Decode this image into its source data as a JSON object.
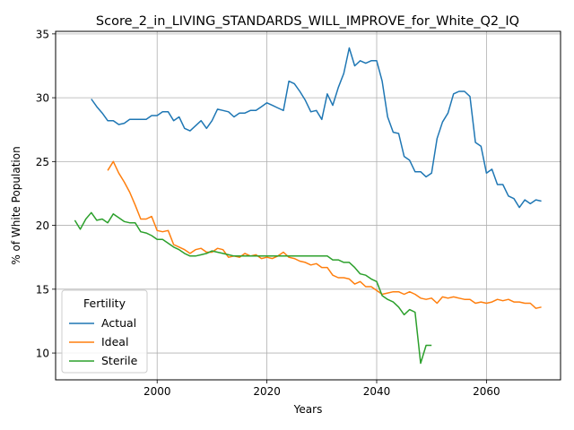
{
  "chart_data": {
    "type": "line",
    "title": "Score_2_in_LIVING_STANDARDS_WILL_IMPROVE_for_White_Q2_IQ",
    "xlabel": "Years",
    "ylabel": "% of White Population",
    "xlim": [
      1981.5,
      2073.5
    ],
    "ylim": [
      7.9,
      35.2
    ],
    "xticks": [
      2000,
      2020,
      2040,
      2060
    ],
    "yticks": [
      10,
      15,
      20,
      25,
      30,
      35
    ],
    "grid": true,
    "legend": {
      "title": "Fertility",
      "position": "lower-left"
    },
    "series": [
      {
        "name": "Actual",
        "color": "#1f77b4",
        "x": [
          1988,
          1989,
          1990,
          1991,
          1992,
          1993,
          1994,
          1995,
          1996,
          1997,
          1998,
          1999,
          2000,
          2001,
          2002,
          2003,
          2004,
          2005,
          2006,
          2007,
          2008,
          2009,
          2010,
          2011,
          2012,
          2013,
          2014,
          2015,
          2016,
          2017,
          2018,
          2019,
          2020,
          2021,
          2022,
          2023,
          2024,
          2025,
          2026,
          2027,
          2028,
          2029,
          2030,
          2031,
          2032,
          2033,
          2034,
          2035,
          2036,
          2037,
          2038,
          2039,
          2040,
          2041,
          2042,
          2043,
          2044,
          2045,
          2046,
          2047,
          2048,
          2049,
          2050,
          2051,
          2052,
          2053,
          2054,
          2055,
          2056,
          2057,
          2058,
          2059,
          2060,
          2061,
          2062,
          2063,
          2064,
          2065,
          2066,
          2067,
          2068,
          2069,
          2070
        ],
        "y": [
          29.9,
          29.3,
          28.8,
          28.2,
          28.2,
          27.9,
          28.0,
          28.3,
          28.3,
          28.3,
          28.3,
          28.6,
          28.6,
          28.9,
          28.9,
          28.2,
          28.5,
          27.6,
          27.4,
          27.8,
          28.2,
          27.6,
          28.2,
          29.1,
          29.0,
          28.9,
          28.5,
          28.8,
          28.8,
          29.0,
          29.0,
          29.3,
          29.6,
          29.4,
          29.2,
          29.0,
          31.3,
          31.1,
          30.5,
          29.8,
          28.9,
          29.0,
          28.3,
          30.3,
          29.4,
          30.8,
          31.9,
          33.9,
          32.5,
          32.9,
          32.7,
          32.9,
          32.9,
          31.3,
          28.5,
          27.3,
          27.2,
          25.4,
          25.1,
          24.2,
          24.2,
          23.8,
          24.1,
          26.8,
          28.1,
          28.8,
          30.3,
          30.5,
          30.5,
          30.1,
          26.5,
          26.2,
          24.1,
          24.4,
          23.2,
          23.2,
          22.3,
          22.1,
          21.4,
          22.0,
          21.7,
          22.0,
          21.9
        ]
      },
      {
        "name": "Ideal",
        "color": "#ff7f0e",
        "x": [
          1991,
          1992,
          1993,
          1994,
          1995,
          1996,
          1997,
          1998,
          1999,
          2000,
          2001,
          2002,
          2003,
          2004,
          2005,
          2006,
          2007,
          2008,
          2009,
          2010,
          2011,
          2012,
          2013,
          2014,
          2015,
          2016,
          2017,
          2018,
          2019,
          2020,
          2021,
          2022,
          2023,
          2024,
          2025,
          2026,
          2027,
          2028,
          2029,
          2030,
          2031,
          2032,
          2033,
          2034,
          2035,
          2036,
          2037,
          2038,
          2039,
          2040,
          2041,
          2042,
          2043,
          2044,
          2045,
          2046,
          2047,
          2048,
          2049,
          2050,
          2051,
          2052,
          2053,
          2054,
          2055,
          2056,
          2057,
          2058,
          2059,
          2060,
          2061,
          2062,
          2063,
          2064,
          2065,
          2066,
          2067,
          2068,
          2069,
          2070
        ],
        "y": [
          24.3,
          25.0,
          24.1,
          23.4,
          22.6,
          21.6,
          20.5,
          20.5,
          20.7,
          19.6,
          19.5,
          19.6,
          18.5,
          18.3,
          18.1,
          17.8,
          18.1,
          18.2,
          17.9,
          17.9,
          18.2,
          18.1,
          17.5,
          17.6,
          17.5,
          17.8,
          17.6,
          17.7,
          17.4,
          17.5,
          17.4,
          17.6,
          17.9,
          17.5,
          17.4,
          17.2,
          17.1,
          16.9,
          17.0,
          16.7,
          16.7,
          16.1,
          15.9,
          15.9,
          15.8,
          15.4,
          15.6,
          15.2,
          15.2,
          14.9,
          14.6,
          14.7,
          14.8,
          14.8,
          14.6,
          14.8,
          14.6,
          14.3,
          14.2,
          14.3,
          13.9,
          14.4,
          14.3,
          14.4,
          14.3,
          14.2,
          14.2,
          13.9,
          14.0,
          13.9,
          14.0,
          14.2,
          14.1,
          14.2,
          14.0,
          14.0,
          13.9,
          13.9,
          13.5,
          13.6
        ]
      },
      {
        "name": "Sterile",
        "color": "#2ca02c",
        "x": [
          1985,
          1986,
          1987,
          1988,
          1989,
          1990,
          1991,
          1992,
          1993,
          1994,
          1995,
          1996,
          1997,
          1998,
          1999,
          2000,
          2001,
          2002,
          2003,
          2004,
          2005,
          2006,
          2007,
          2008,
          2009,
          2010,
          2011,
          2012,
          2013,
          2014,
          2015,
          2016,
          2017,
          2018,
          2019,
          2020,
          2021,
          2022,
          2023,
          2024,
          2025,
          2026,
          2027,
          2028,
          2029,
          2030,
          2031,
          2032,
          2033,
          2034,
          2035,
          2036,
          2037,
          2038,
          2039,
          2040,
          2041,
          2042,
          2043,
          2044,
          2045,
          2046,
          2047,
          2048,
          2049,
          2050
        ],
        "y": [
          20.4,
          19.7,
          20.5,
          21.0,
          20.4,
          20.5,
          20.2,
          20.9,
          20.6,
          20.3,
          20.2,
          20.2,
          19.5,
          19.4,
          19.2,
          18.9,
          18.9,
          18.6,
          18.3,
          18.1,
          17.8,
          17.6,
          17.6,
          17.7,
          17.8,
          18.0,
          17.9,
          17.8,
          17.7,
          17.6,
          17.6,
          17.6,
          17.6,
          17.6,
          17.6,
          17.6,
          17.6,
          17.6,
          17.6,
          17.6,
          17.6,
          17.6,
          17.6,
          17.6,
          17.6,
          17.6,
          17.6,
          17.3,
          17.3,
          17.1,
          17.1,
          16.7,
          16.2,
          16.1,
          15.8,
          15.6,
          14.5,
          14.2,
          14.0,
          13.6,
          13.0,
          13.4,
          13.2,
          9.2,
          10.6,
          10.6
        ]
      }
    ]
  }
}
